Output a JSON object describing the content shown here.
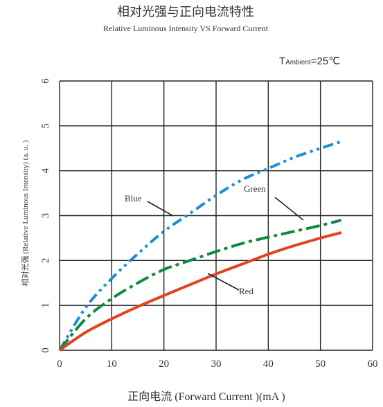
{
  "chart_data": {
    "type": "line",
    "title": "相对光强与正向电流特性",
    "subtitle": "Relative Luminous Intensity VS Forward Current",
    "xlabel": "正向电流 (Forward Current )(mA )",
    "ylabel": "相对光强 (Relative Luminous Intensity) (a. u. )",
    "ambient": {
      "prefix": "T",
      "sub": "Ambient",
      "value": "=25℃"
    },
    "xlim": [
      0,
      60
    ],
    "ylim": [
      0,
      6
    ],
    "x_ticks": [
      "0",
      "10",
      "20",
      "30",
      "40",
      "50",
      "60"
    ],
    "y_ticks": [
      "0",
      "1",
      "2",
      "3",
      "4",
      "5",
      "6"
    ],
    "grid": true,
    "series": [
      {
        "name": "Blue",
        "color": "#1a8fd6",
        "dash": "dash-dot-dot",
        "x": [
          0,
          5,
          10,
          15,
          20,
          25,
          30,
          35,
          40,
          45,
          50,
          54
        ],
        "y": [
          0,
          0.95,
          1.6,
          2.15,
          2.65,
          3.05,
          3.45,
          3.8,
          4.05,
          4.3,
          4.5,
          4.65
        ]
      },
      {
        "name": "Green",
        "color": "#0e8a3e",
        "dash": "dash-dot",
        "x": [
          0,
          5,
          10,
          15,
          20,
          25,
          30,
          35,
          40,
          45,
          50,
          54
        ],
        "y": [
          0,
          0.7,
          1.15,
          1.5,
          1.8,
          2.0,
          2.2,
          2.38,
          2.52,
          2.65,
          2.78,
          2.9
        ]
      },
      {
        "name": "Red",
        "color": "#e2431c",
        "dash": "solid",
        "x": [
          0,
          5,
          10,
          15,
          20,
          25,
          30,
          35,
          40,
          45,
          50,
          54
        ],
        "y": [
          0,
          0.4,
          0.7,
          0.97,
          1.22,
          1.46,
          1.7,
          1.92,
          2.14,
          2.33,
          2.5,
          2.62
        ]
      }
    ]
  }
}
